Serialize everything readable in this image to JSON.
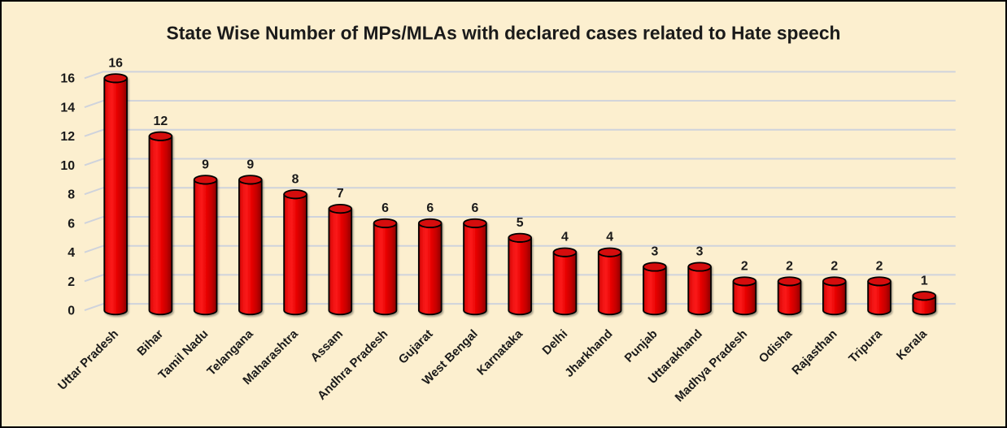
{
  "window": {
    "background_color": "#FCEFCF",
    "border_color": "#000000"
  },
  "chart_data": {
    "type": "bar",
    "subtype": "3d-cylinder",
    "title": "State Wise Number of MPs/MLAs with declared cases related to Hate speech",
    "categories": [
      "Uttar Pradesh",
      "Bihar",
      "Tamil Nadu",
      "Telangana",
      "Maharashtra",
      "Assam",
      "Andhra Pradesh",
      "Gujarat",
      "West Bengal",
      "Karnataka",
      "Delhi",
      "Jharkhand",
      "Punjab",
      "Uttarakhand",
      "Madhya Pradesh",
      "Odisha",
      "Rajasthan",
      "Tripura",
      "Kerala"
    ],
    "values": [
      16,
      12,
      9,
      9,
      8,
      7,
      6,
      6,
      6,
      5,
      4,
      4,
      3,
      3,
      2,
      2,
      2,
      2,
      1
    ],
    "xlabel": "",
    "ylabel": "",
    "ylim": [
      0,
      16
    ],
    "ytick_step": 2,
    "ytick_labels": [
      "0",
      "2",
      "4",
      "6",
      "8",
      "10",
      "12",
      "14",
      "16"
    ],
    "grid": true,
    "legend": false,
    "data_labels": true,
    "x_label_rotation_deg": 45,
    "colors": {
      "background": "#FCEFCF",
      "gridline": "#CFD3DC",
      "text": "#1A1A1A",
      "bar_outline": "#000000",
      "bar_top": "#D50D0D",
      "bar_gradient": [
        [
          "0%",
          "#B50000"
        ],
        [
          "12%",
          "#E80E0E"
        ],
        [
          "32%",
          "#FB1A1A"
        ],
        [
          "52%",
          "#EC0505"
        ],
        [
          "78%",
          "#C40000"
        ],
        [
          "100%",
          "#8C0000"
        ]
      ]
    }
  }
}
